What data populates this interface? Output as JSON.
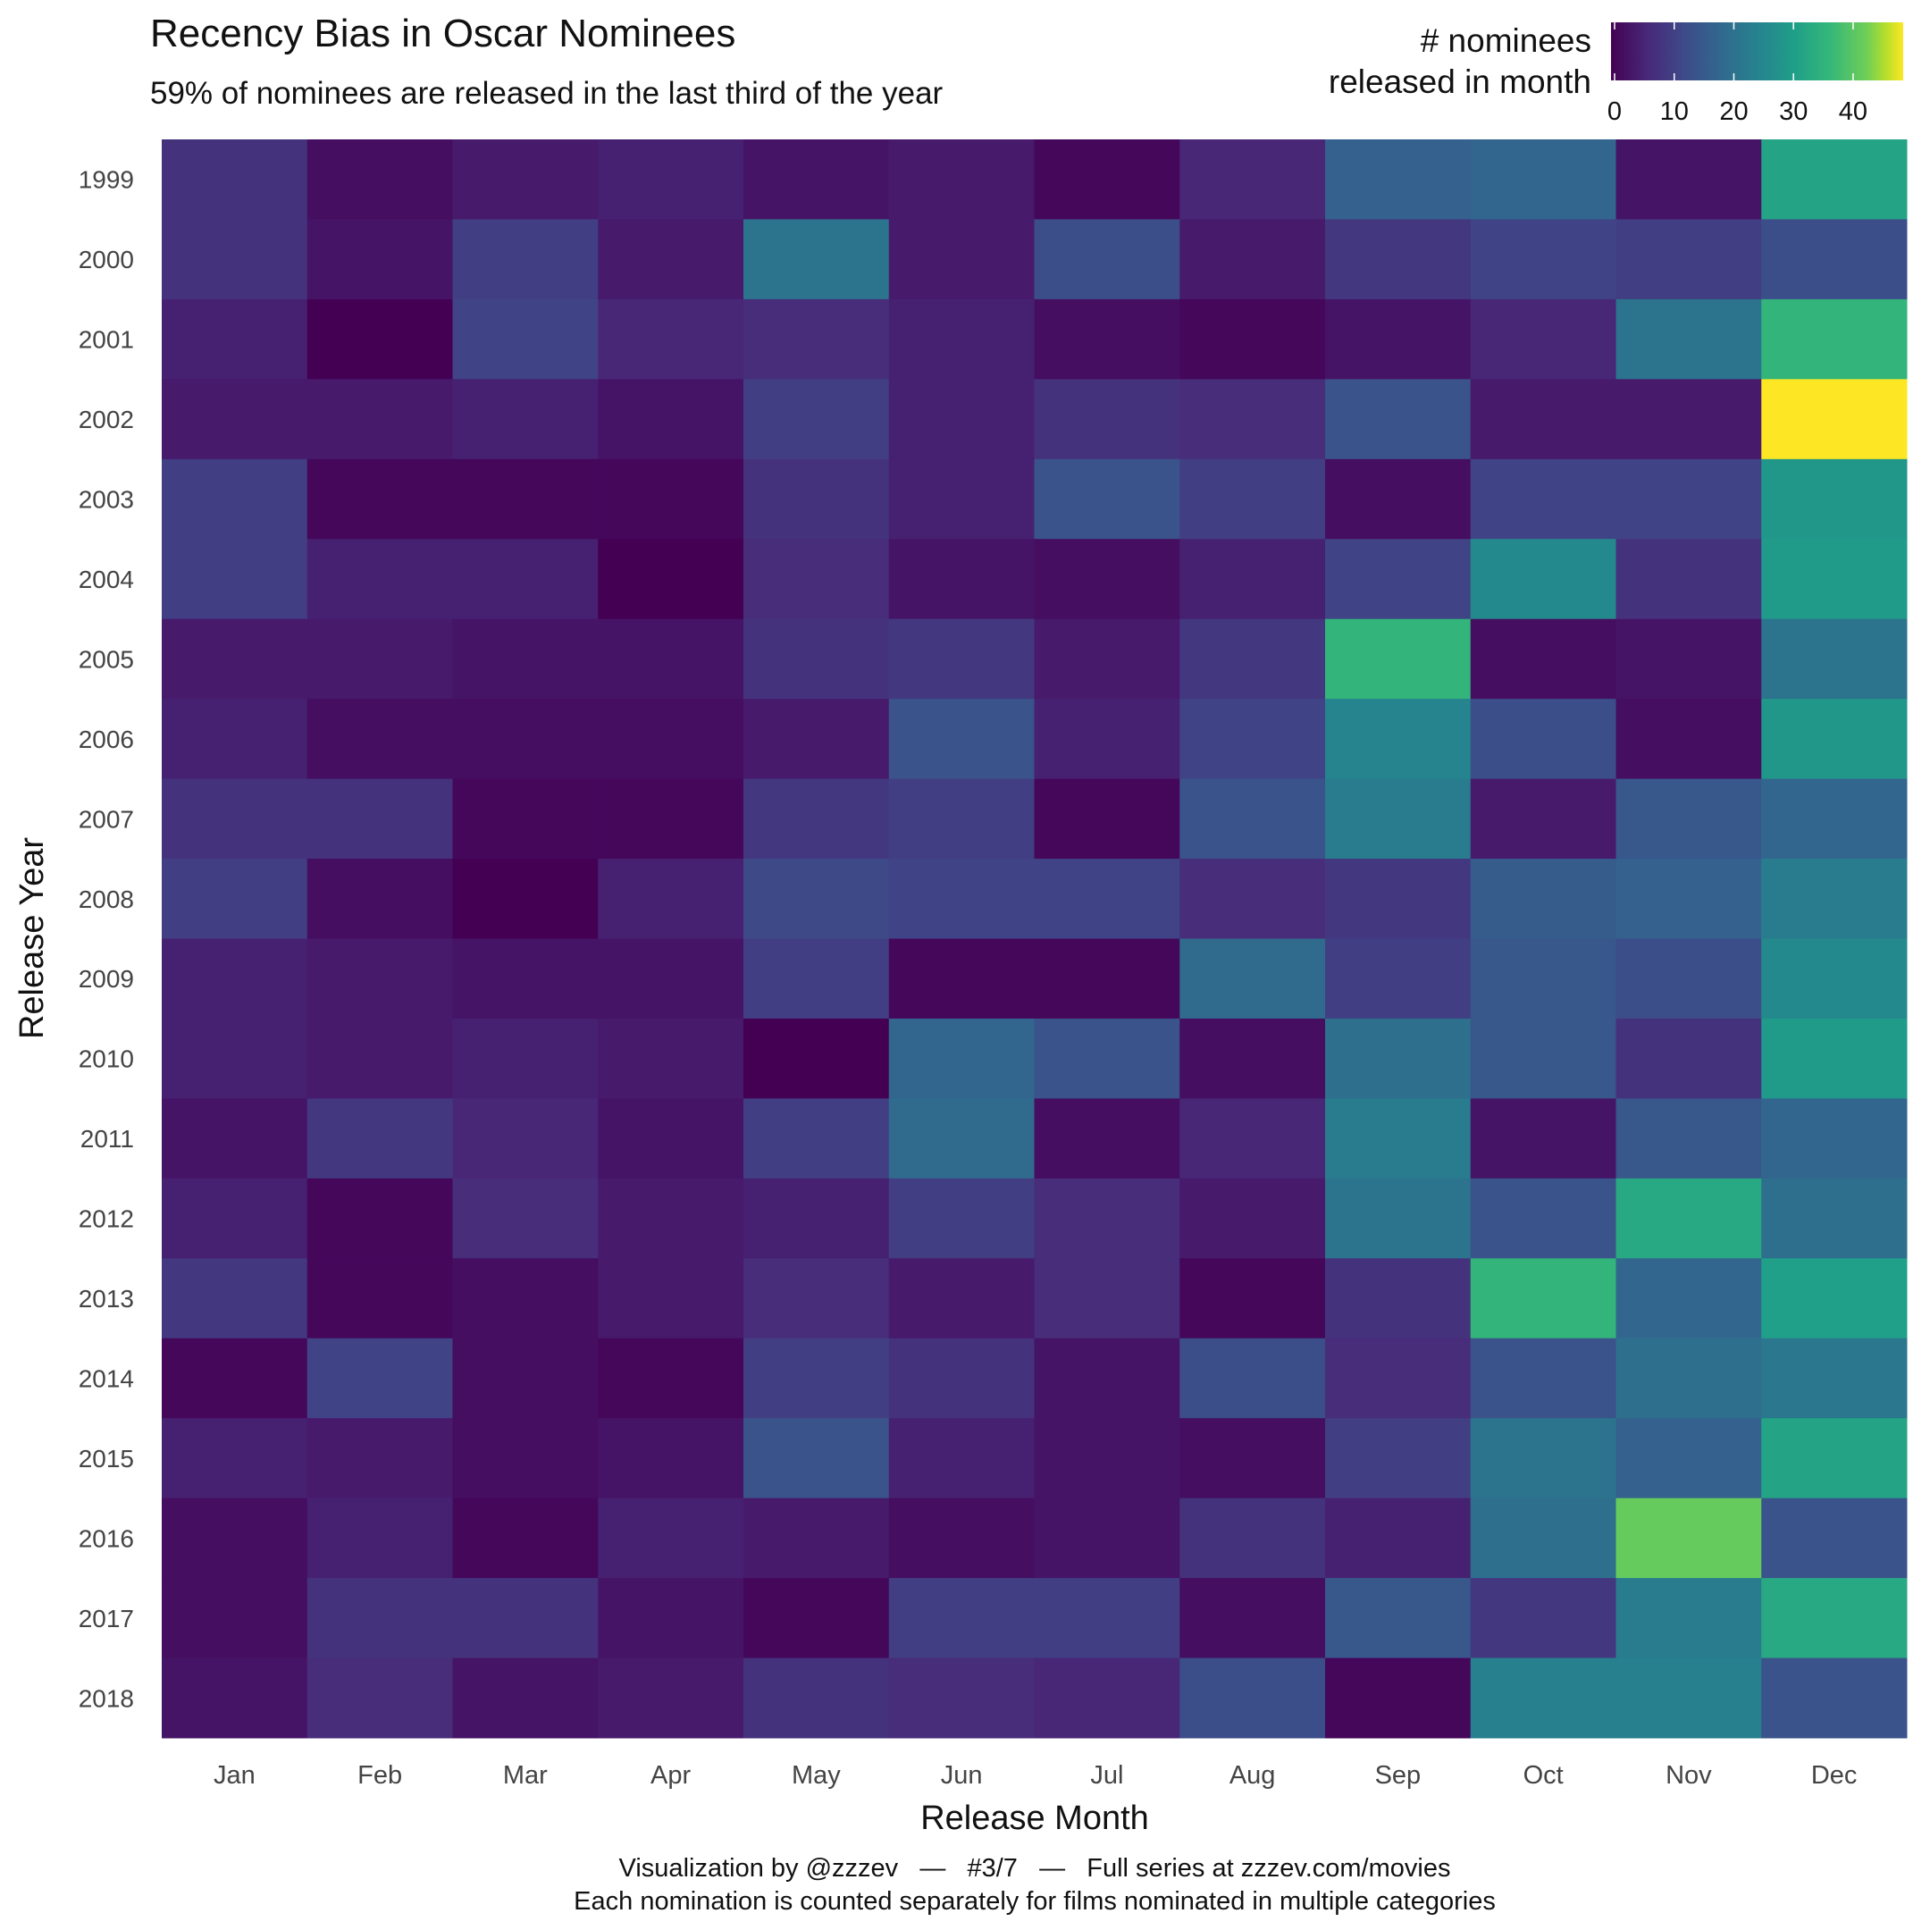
{
  "chart_data": {
    "type": "heatmap",
    "title": "Recency Bias in Oscar Nominees",
    "subtitle": "59% of nominees are released in the last third of the year",
    "xlabel": "Release Month",
    "ylabel": "Release Year",
    "legend": {
      "title_line1": "# nominees",
      "title_line2": "released in month",
      "ticks": [
        0,
        10,
        20,
        30,
        40
      ],
      "range": [
        0,
        49
      ],
      "colormap": "viridis",
      "placement": "top-right"
    },
    "x_categories": [
      "Jan",
      "Feb",
      "Mar",
      "Apr",
      "May",
      "Jun",
      "Jul",
      "Aug",
      "Sep",
      "Oct",
      "Nov",
      "Dec"
    ],
    "y_categories": [
      "1999",
      "2000",
      "2001",
      "2002",
      "2003",
      "2004",
      "2005",
      "2006",
      "2007",
      "2008",
      "2009",
      "2010",
      "2011",
      "2012",
      "2013",
      "2014",
      "2015",
      "2016",
      "2017",
      "2018"
    ],
    "values": [
      [
        8,
        2,
        4,
        5,
        3,
        4,
        1,
        6,
        17,
        18,
        3,
        32
      ],
      [
        8,
        3,
        10,
        4,
        21,
        4,
        13,
        4,
        9,
        11,
        10,
        13
      ],
      [
        5,
        0,
        11,
        6,
        7,
        5,
        2,
        1,
        3,
        6,
        21,
        36
      ],
      [
        4,
        4,
        5,
        3,
        10,
        5,
        8,
        7,
        14,
        4,
        4,
        49
      ],
      [
        10,
        1,
        1,
        1,
        8,
        5,
        14,
        10,
        2,
        11,
        11,
        29
      ],
      [
        10,
        5,
        5,
        0,
        7,
        3,
        2,
        5,
        11,
        26,
        8,
        30
      ],
      [
        4,
        4,
        3,
        3,
        8,
        9,
        4,
        9,
        36,
        2,
        3,
        21
      ],
      [
        5,
        2,
        2,
        2,
        4,
        14,
        5,
        11,
        25,
        13,
        2,
        29
      ],
      [
        8,
        8,
        1,
        1,
        9,
        10,
        1,
        14,
        23,
        4,
        15,
        18
      ],
      [
        10,
        2,
        0,
        5,
        12,
        11,
        11,
        7,
        9,
        16,
        17,
        23
      ],
      [
        5,
        4,
        3,
        3,
        10,
        1,
        1,
        19,
        10,
        15,
        13,
        26
      ],
      [
        5,
        4,
        5,
        4,
        0,
        18,
        14,
        2,
        20,
        15,
        8,
        30
      ],
      [
        3,
        9,
        6,
        3,
        10,
        19,
        2,
        6,
        23,
        3,
        15,
        18
      ],
      [
        5,
        1,
        7,
        4,
        5,
        10,
        7,
        4,
        21,
        14,
        33,
        20
      ],
      [
        9,
        1,
        2,
        4,
        7,
        4,
        7,
        1,
        8,
        36,
        18,
        31
      ],
      [
        1,
        11,
        2,
        1,
        10,
        8,
        3,
        13,
        7,
        14,
        20,
        22
      ],
      [
        5,
        4,
        2,
        3,
        14,
        5,
        3,
        2,
        10,
        21,
        17,
        32
      ],
      [
        2,
        5,
        1,
        5,
        4,
        2,
        3,
        8,
        5,
        20,
        42,
        14
      ],
      [
        2,
        8,
        8,
        3,
        1,
        10,
        10,
        2,
        15,
        9,
        23,
        33
      ],
      [
        3,
        7,
        3,
        4,
        8,
        7,
        6,
        13,
        1,
        24,
        24,
        14
      ]
    ],
    "grid": false
  },
  "footer": {
    "line1": "Visualization by @zzzev   —   #3/7   —   Full series at zzzev.com/movies",
    "line2": "Each nomination is counted separately for films nominated in multiple categories"
  }
}
